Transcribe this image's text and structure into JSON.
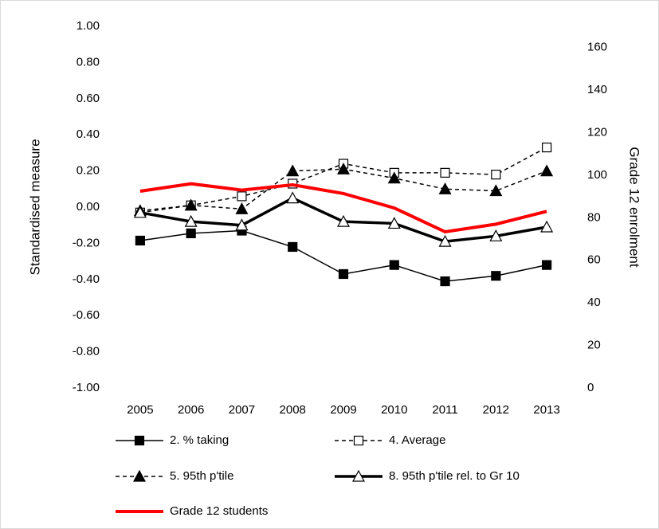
{
  "chart_data": {
    "type": "line",
    "y_label": "Standardised measure",
    "y2_label": "Grade 12 enrolment",
    "y2_color": "#ff0000",
    "categories": [
      "2005",
      "2006",
      "2007",
      "2008",
      "2009",
      "2010",
      "2011",
      "2012",
      "2013"
    ],
    "ylim": [
      -1,
      1
    ],
    "yticks": [
      {
        "value": 1,
        "label": "1.00"
      },
      {
        "value": 0.8,
        "label": "0.80"
      },
      {
        "value": 0.6,
        "label": "0.60"
      },
      {
        "value": 0.4,
        "label": "0.40"
      },
      {
        "value": 0.2,
        "label": "0.20"
      },
      {
        "value": 0,
        "label": "0.00"
      },
      {
        "value": -0.2,
        "label": "-0.20"
      },
      {
        "value": -0.4,
        "label": "-0.40"
      },
      {
        "value": -0.6,
        "label": "-0.60"
      },
      {
        "value": -0.8,
        "label": "-0.80"
      },
      {
        "value": -1,
        "label": "-1.00"
      }
    ],
    "y2lim": [
      0,
      170
    ],
    "y2ticks": [
      0,
      20,
      40,
      60,
      80,
      100,
      120,
      140,
      160
    ],
    "series": [
      {
        "name": "2. % taking",
        "color": "#000000",
        "width": 1.5,
        "dash": false,
        "marker": "square",
        "marker_filled": true,
        "values": [
          -0.185,
          -0.145,
          -0.13,
          -0.22,
          -0.37,
          -0.32,
          -0.41,
          -0.38,
          -0.32
        ]
      },
      {
        "name": "4. Average",
        "color": "#000000",
        "width": 1.5,
        "dash": true,
        "marker": "square",
        "marker_filled": false,
        "values": [
          -0.03,
          0.01,
          0.06,
          0.13,
          0.24,
          0.19,
          0.19,
          0.18,
          0.33
        ]
      },
      {
        "name": "5. 95th p'tile",
        "color": "#000000",
        "width": 1.5,
        "dash": true,
        "marker": "triangle",
        "marker_filled": true,
        "values": [
          -0.02,
          0.01,
          -0.01,
          0.2,
          0.21,
          0.16,
          0.1,
          0.09,
          0.2
        ]
      },
      {
        "name": "8. 95th p'tile rel. to Gr 10",
        "color": "#000000",
        "width": 3.5,
        "dash": false,
        "marker": "triangle",
        "marker_filled": false,
        "values": [
          -0.03,
          -0.08,
          -0.1,
          0.05,
          -0.08,
          -0.09,
          -0.19,
          -0.16,
          -0.11
        ]
      },
      {
        "name": "Grade 12 students",
        "color": "#ff0000",
        "width": 4,
        "dash": false,
        "marker": "none",
        "marker_filled": false,
        "axis": "y2",
        "values": [
          92.5,
          96,
          93,
          95.5,
          91.4,
          84.6,
          73.4,
          77,
          83
        ]
      }
    ]
  }
}
